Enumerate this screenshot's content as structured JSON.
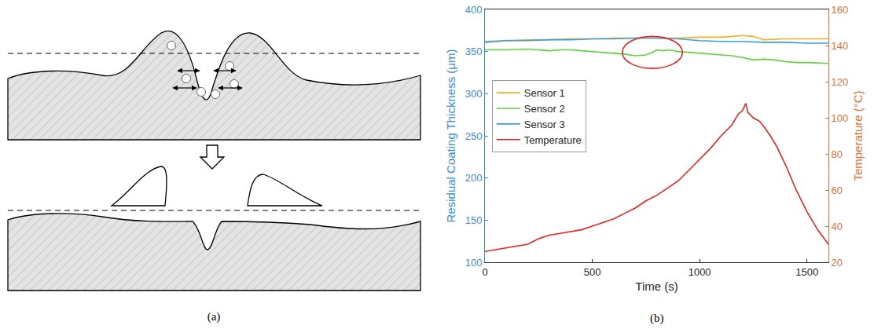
{
  "diagram": {
    "caption": "(a)"
  },
  "chart_data": {
    "type": "line",
    "caption": "(b)",
    "x_label": "Time (s)",
    "y_label": "Residual Coating Thickness (μm)",
    "y2_label": "Temperature (°C)",
    "xlim": [
      0,
      1600
    ],
    "xticks": [
      0,
      500,
      1000,
      1500
    ],
    "ylim": [
      100,
      400
    ],
    "yticks": [
      100,
      150,
      200,
      250,
      300,
      350,
      400
    ],
    "y2lim": [
      20,
      160
    ],
    "y2ticks": [
      20,
      40,
      60,
      80,
      100,
      120,
      140,
      160
    ],
    "grid": false,
    "legend": "left",
    "series": [
      {
        "name": "Sensor 1",
        "color": "#EDB120",
        "x": [
          0,
          100,
          200,
          300,
          400,
          500,
          600,
          700,
          800,
          900,
          1000,
          1100,
          1200,
          1250,
          1300,
          1400,
          1500,
          1600
        ],
        "values": [
          362,
          363,
          364,
          364,
          365,
          365,
          366,
          366,
          366,
          366,
          367,
          367,
          369,
          368,
          364,
          365,
          365,
          365
        ]
      },
      {
        "name": "Sensor 2",
        "color": "#5AD33C",
        "x": [
          0,
          100,
          200,
          250,
          300,
          350,
          400,
          450,
          500,
          550,
          600,
          650,
          700,
          750,
          780,
          800,
          830,
          860,
          900,
          950,
          1000,
          1050,
          1100,
          1150,
          1200,
          1250,
          1300,
          1350,
          1400,
          1450,
          1500,
          1600
        ],
        "values": [
          352,
          352,
          353,
          352,
          351,
          352,
          352,
          351,
          350,
          349,
          348,
          347,
          345,
          346,
          349,
          352,
          351,
          352,
          350,
          349,
          348,
          347,
          346,
          345,
          343,
          340,
          341,
          340,
          338,
          337,
          337,
          336
        ]
      },
      {
        "name": "Sensor 3",
        "color": "#3A9FE6",
        "x": [
          0,
          100,
          200,
          300,
          400,
          500,
          600,
          700,
          800,
          900,
          1000,
          1100,
          1200,
          1300,
          1400,
          1500,
          1600
        ],
        "values": [
          361,
          363,
          363,
          364,
          364,
          365,
          365,
          366,
          366,
          365,
          363,
          362,
          362,
          361,
          361,
          360,
          360
        ]
      },
      {
        "name": "Temperature",
        "color": "#E8231E",
        "axis": "y2",
        "x": [
          0,
          50,
          100,
          150,
          200,
          250,
          300,
          350,
          400,
          450,
          500,
          550,
          600,
          650,
          700,
          750,
          800,
          850,
          900,
          950,
          1000,
          1050,
          1100,
          1150,
          1180,
          1200,
          1215,
          1225,
          1250,
          1280,
          1300,
          1330,
          1360,
          1400,
          1450,
          1500,
          1550,
          1600
        ],
        "values": [
          26,
          27,
          28,
          29,
          30,
          33,
          35,
          36,
          37,
          38,
          40,
          42,
          44,
          47,
          50,
          54,
          57,
          61,
          65,
          71,
          77,
          83,
          90,
          96,
          102,
          104,
          108,
          103,
          100,
          98,
          95,
          90,
          84,
          74,
          60,
          48,
          38,
          30
        ]
      }
    ],
    "annotations": [
      {
        "shape": "ellipse",
        "x": [
          640,
          920
        ],
        "y": [
          330,
          368
        ],
        "color": "#E8231E"
      }
    ]
  }
}
